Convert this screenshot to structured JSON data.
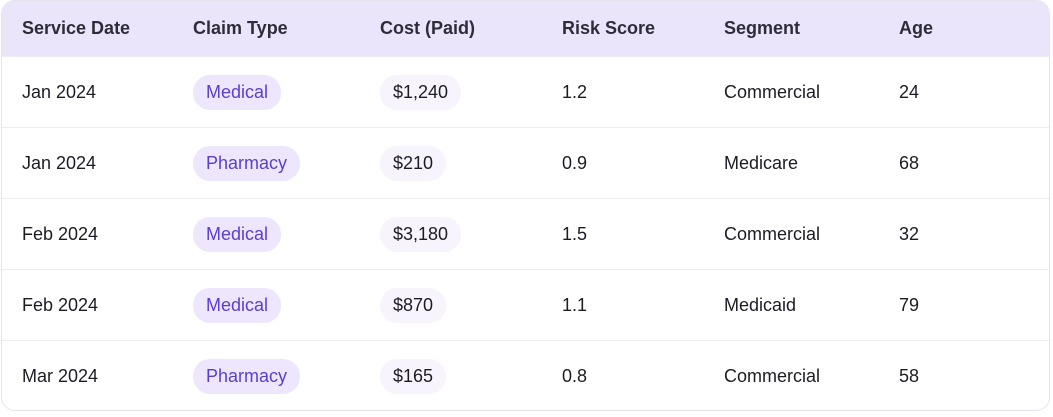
{
  "table": {
    "headers": [
      "Service Date",
      "Claim Type",
      "Cost (Paid)",
      "Risk Score",
      "Segment",
      "Age"
    ],
    "rows": [
      [
        "Jan 2024",
        "Medical",
        "$1,240",
        "1.2",
        "Commercial",
        "24"
      ],
      [
        "Jan 2024",
        "Pharmacy",
        "$210",
        "0.9",
        "Medicare",
        "68"
      ],
      [
        "Feb 2024",
        "Medical",
        "$3,180",
        "1.5",
        "Commercial",
        "32"
      ],
      [
        "Feb 2024",
        "Medical",
        "$870",
        "1.1",
        "Medicaid",
        "79"
      ],
      [
        "Mar 2024",
        "Pharmacy",
        "$165",
        "0.8",
        "Commercial",
        "58"
      ]
    ]
  }
}
